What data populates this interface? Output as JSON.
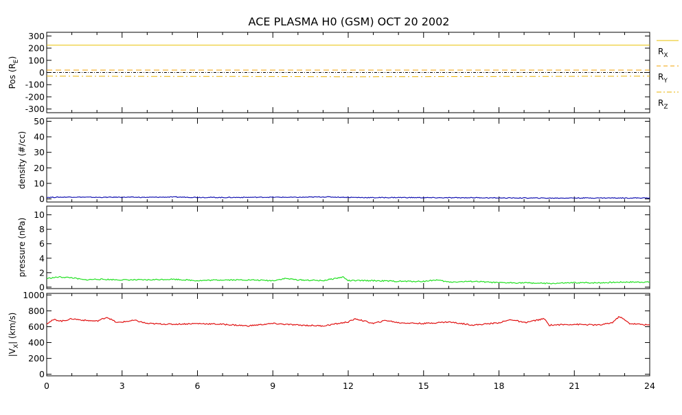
{
  "title": "ACE PLASMA H0 (GSM)   OCT 20 2002",
  "colors": {
    "axes": "#000000",
    "rx": "#e8c000",
    "ry": "#f0a000",
    "rz": "#e8b000",
    "density": "#1010b0",
    "pressure": "#20e020",
    "vx": "#e01010"
  },
  "x_axis": {
    "range": [
      0,
      24
    ],
    "ticks": [
      0,
      3,
      6,
      9,
      12,
      15,
      18,
      21,
      24
    ],
    "tick_labels": [
      "0",
      "3",
      "6",
      "9",
      "12",
      "15",
      "18",
      "21",
      "24"
    ]
  },
  "chart_data": [
    {
      "type": "line",
      "panel": "position",
      "ylabel_main": "Pos (R",
      "ylabel_sub": "E",
      "ylabel_end": ")",
      "ylim": [
        -330,
        330
      ],
      "yticks": [
        -300,
        -200,
        -100,
        0,
        100,
        200,
        300
      ],
      "ytick_labels": [
        "-300",
        "-200",
        "-100",
        "0",
        "100",
        "200",
        "300"
      ],
      "zero_line": true,
      "legend_placement": "right",
      "series": [
        {
          "name": "R",
          "sub": "X",
          "style": "solid",
          "x": [
            0,
            24
          ],
          "y": [
            224,
            224
          ]
        },
        {
          "name": "R",
          "sub": "Y",
          "style": "dashed",
          "x": [
            0,
            24
          ],
          "y": [
            20,
            20
          ]
        },
        {
          "name": "R",
          "sub": "Z",
          "style": "dashdot",
          "x": [
            0,
            4,
            8,
            12,
            16,
            20,
            24
          ],
          "y": [
            -30,
            -32,
            -33,
            -35,
            -34,
            -32,
            -30
          ]
        }
      ]
    },
    {
      "type": "line",
      "panel": "density",
      "ylabel": "density (#/cc)",
      "ylim": [
        -2,
        52
      ],
      "yticks": [
        0,
        10,
        20,
        30,
        40,
        50
      ],
      "ytick_labels": [
        "0",
        "10",
        "20",
        "30",
        "40",
        "50"
      ],
      "series": [
        {
          "x": [
            0,
            1,
            2,
            3,
            4,
            5,
            6,
            7,
            8,
            9,
            10,
            11,
            12,
            13,
            14,
            15,
            16,
            17,
            18,
            19,
            20,
            21,
            22,
            23,
            24
          ],
          "y": [
            1.0,
            1.2,
            1.0,
            1.1,
            1.0,
            1.2,
            1.0,
            0.9,
            1.0,
            1.1,
            1.0,
            1.3,
            1.0,
            0.8,
            0.9,
            0.8,
            0.7,
            0.8,
            0.6,
            0.6,
            0.5,
            0.6,
            0.6,
            0.6,
            0.6
          ]
        }
      ]
    },
    {
      "type": "line",
      "panel": "pressure",
      "ylabel": "pressure (nPa)",
      "ylim": [
        -0.2,
        11.2
      ],
      "yticks": [
        0,
        2,
        4,
        6,
        8,
        10
      ],
      "ytick_labels": [
        "0",
        "2",
        "4",
        "6",
        "8",
        "10"
      ],
      "series": [
        {
          "x": [
            0,
            0.5,
            1,
            1.5,
            2,
            3,
            4,
            5,
            6,
            7,
            8,
            9,
            9.5,
            10,
            11,
            11.8,
            12,
            13,
            14,
            15,
            15.5,
            16,
            17,
            18,
            19,
            20,
            21,
            22,
            23,
            24
          ],
          "y": [
            1.2,
            1.4,
            1.3,
            1.0,
            1.1,
            1.0,
            1.0,
            1.1,
            0.9,
            1.0,
            1.0,
            0.9,
            1.2,
            1.0,
            0.9,
            1.4,
            0.9,
            0.9,
            0.8,
            0.8,
            1.0,
            0.7,
            0.8,
            0.6,
            0.6,
            0.5,
            0.6,
            0.6,
            0.7,
            0.7
          ]
        }
      ]
    },
    {
      "type": "line",
      "panel": "vx",
      "ylabel_main": "|V",
      "ylabel_sub": "X",
      "ylabel_end": "| (km/s)",
      "ylim": [
        -20,
        1020
      ],
      "yticks": [
        0,
        200,
        400,
        600,
        800,
        1000
      ],
      "ytick_labels": [
        "0",
        "200",
        "400",
        "600",
        "800",
        "1000"
      ],
      "series": [
        {
          "x": [
            0,
            0.3,
            0.6,
            1.0,
            1.5,
            2.0,
            2.4,
            2.8,
            3.5,
            4.0,
            5.0,
            6.0,
            7.0,
            8.0,
            9.0,
            10.0,
            11.0,
            12.0,
            12.3,
            13.0,
            13.5,
            14.0,
            15.0,
            16.0,
            17.0,
            18.0,
            18.5,
            19.0,
            19.8,
            20.0,
            21.0,
            22.0,
            22.5,
            22.8,
            23.2,
            24.0
          ],
          "y": [
            640,
            690,
            670,
            700,
            680,
            670,
            720,
            650,
            680,
            640,
            630,
            640,
            630,
            610,
            640,
            620,
            610,
            660,
            700,
            640,
            680,
            650,
            640,
            660,
            620,
            650,
            690,
            650,
            700,
            620,
            630,
            620,
            650,
            730,
            640,
            620
          ]
        }
      ]
    }
  ]
}
